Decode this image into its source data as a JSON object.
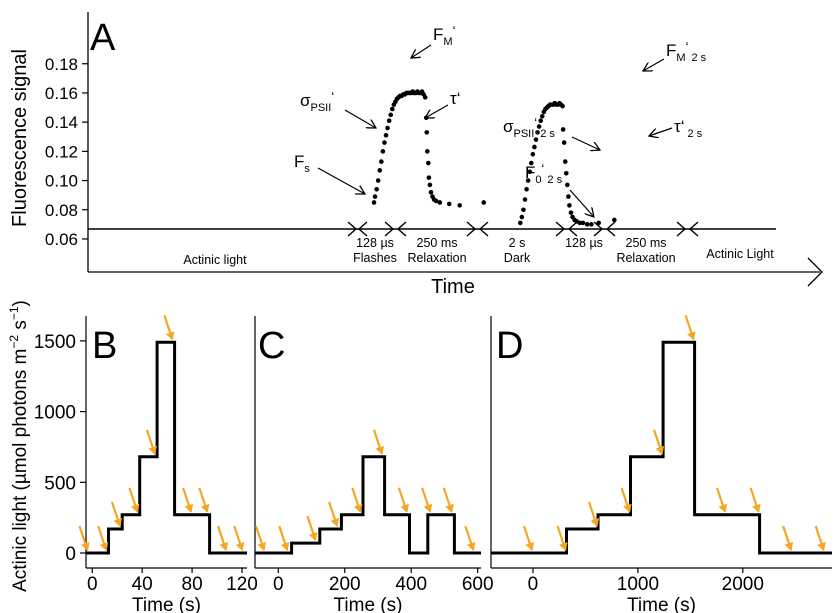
{
  "colors": {
    "trace": "#000000",
    "arrow": "#F5A623",
    "axis": "#000000"
  },
  "panel_a": {
    "letter": "A",
    "ylabel": "Fluorescence signal",
    "xlabel": "Time",
    "yticks": [
      "0.06",
      "0.08",
      "0.10",
      "0.12",
      "0.14",
      "0.16",
      "0.18"
    ],
    "labels": {
      "fm": "F",
      "fm_sub": "M",
      "fm_prime": "‘",
      "sigma": "σ",
      "sigma_sub": "PSII",
      "sigma_prime": "‘",
      "tau": "τ‘",
      "fs": "F",
      "fs_sub": "s",
      "fm2": "F",
      "fm2_sub": "M",
      "fm2_prime": "‘",
      "fm2_tail": "2 s",
      "sigma2": "σ",
      "sigma2_sub": "PSII",
      "sigma2_prime": "‘",
      "sigma2_tail": "2 s",
      "tau2": "τ‘",
      "tau2_tail": "2 s",
      "f0": "F",
      "f0_sub": "0",
      "f0_prime": "‘",
      "f0_tail": "2 s"
    },
    "phases": [
      {
        "top": "",
        "bottom": "Actinic light"
      },
      {
        "top": "128 µs",
        "bottom": "Flashes"
      },
      {
        "top": "250 ms",
        "bottom": "Relaxation"
      },
      {
        "top": "2 s",
        "bottom": "Dark"
      },
      {
        "top": "128 µs",
        "bottom": ""
      },
      {
        "top": "250 ms",
        "bottom": "Relaxation"
      },
      {
        "top": "",
        "bottom": "Actinic Light"
      }
    ]
  },
  "bottom": {
    "ylabel_main": "Actinic light (µmol photons m",
    "ylabel_sup1": "−2",
    "ylabel_mid": " s",
    "ylabel_sup2": "−1",
    "ylabel_end": ")",
    "yticks": [
      "0",
      "500",
      "1000",
      "1500"
    ]
  },
  "chart_data": [
    {
      "panel": "A",
      "type": "scatter",
      "title": "",
      "xlabel": "Time",
      "ylabel": "Fluorescence signal",
      "ylim": [
        0.055,
        0.185
      ],
      "baseline_y": 0.0675,
      "series": [
        {
          "points": [
            [
              0.0,
              0.085
            ],
            [
              0.1,
              0.089
            ],
            [
              0.25,
              0.094
            ],
            [
              0.4,
              0.1
            ],
            [
              0.55,
              0.107
            ],
            [
              0.7,
              0.113
            ],
            [
              0.85,
              0.12
            ],
            [
              1.0,
              0.126
            ],
            [
              1.15,
              0.131
            ],
            [
              1.3,
              0.136
            ],
            [
              1.45,
              0.141
            ],
            [
              1.6,
              0.145
            ],
            [
              1.75,
              0.149
            ],
            [
              1.9,
              0.152
            ],
            [
              2.05,
              0.154
            ],
            [
              2.2,
              0.156
            ],
            [
              2.35,
              0.157
            ],
            [
              2.5,
              0.158
            ],
            [
              2.65,
              0.158
            ],
            [
              2.8,
              0.159
            ],
            [
              2.95,
              0.159
            ],
            [
              3.1,
              0.16
            ],
            [
              3.25,
              0.16
            ],
            [
              3.4,
              0.16
            ],
            [
              3.55,
              0.16
            ],
            [
              3.7,
              0.161
            ],
            [
              3.85,
              0.16
            ],
            [
              4.0,
              0.16
            ],
            [
              4.15,
              0.161
            ],
            [
              4.3,
              0.16
            ],
            [
              4.45,
              0.16
            ],
            [
              4.6,
              0.161
            ],
            [
              4.75,
              0.159
            ],
            [
              4.9,
              0.157
            ]
          ]
        },
        {
          "points": [
            [
              5.0,
              0.143
            ],
            [
              5.05,
              0.133
            ],
            [
              5.1,
              0.12
            ],
            [
              5.2,
              0.112
            ],
            [
              5.25,
              0.102
            ],
            [
              5.35,
              0.097
            ],
            [
              5.45,
              0.092
            ],
            [
              5.6,
              0.089
            ],
            [
              5.75,
              0.087
            ],
            [
              5.95,
              0.086
            ],
            [
              6.3,
              0.085
            ],
            [
              7.2,
              0.084
            ],
            [
              8.2,
              0.083
            ]
          ]
        },
        {
          "points": [
            [
              10.5,
              0.085
            ]
          ]
        },
        {
          "points": [
            [
              14.0,
              0.071
            ],
            [
              14.15,
              0.075
            ],
            [
              14.3,
              0.08
            ],
            [
              14.45,
              0.087
            ],
            [
              14.6,
              0.094
            ],
            [
              14.75,
              0.1
            ],
            [
              14.9,
              0.106
            ],
            [
              15.05,
              0.112
            ],
            [
              15.2,
              0.118
            ],
            [
              15.35,
              0.123
            ],
            [
              15.5,
              0.128
            ],
            [
              15.65,
              0.133
            ],
            [
              15.8,
              0.137
            ],
            [
              15.95,
              0.141
            ],
            [
              16.1,
              0.144
            ],
            [
              16.25,
              0.147
            ],
            [
              16.4,
              0.149
            ],
            [
              16.55,
              0.15
            ],
            [
              16.7,
              0.151
            ],
            [
              16.85,
              0.152
            ],
            [
              17.0,
              0.152
            ],
            [
              17.15,
              0.152
            ],
            [
              17.3,
              0.153
            ],
            [
              17.45,
              0.152
            ],
            [
              17.6,
              0.152
            ],
            [
              17.75,
              0.153
            ],
            [
              17.9,
              0.152
            ],
            [
              18.05,
              0.151
            ]
          ]
        },
        {
          "points": [
            [
              18.1,
              0.135
            ],
            [
              18.2,
              0.126
            ],
            [
              18.3,
              0.113
            ],
            [
              18.4,
              0.105
            ],
            [
              18.5,
              0.097
            ],
            [
              18.6,
              0.089
            ],
            [
              18.7,
              0.083
            ],
            [
              18.85,
              0.078
            ],
            [
              19.0,
              0.075
            ],
            [
              19.2,
              0.073
            ],
            [
              19.4,
              0.072
            ],
            [
              19.7,
              0.071
            ],
            [
              20.0,
              0.071
            ],
            [
              20.4,
              0.07
            ],
            [
              20.8,
              0.07
            ],
            [
              21.5,
              0.071
            ],
            [
              23.0,
              0.073
            ]
          ]
        }
      ]
    },
    {
      "panel": "B",
      "type": "line",
      "xlabel": "Time (s)",
      "ylabel": "Actinic light (µmol photons m−2 s−1)",
      "xlim": [
        -5,
        124
      ],
      "ylim": [
        -60,
        1680
      ],
      "xticks": [
        0,
        40,
        80,
        120
      ],
      "steps": [
        [
          -5,
          0
        ],
        [
          13,
          0
        ],
        [
          13,
          170
        ],
        [
          24,
          170
        ],
        [
          24,
          270
        ],
        [
          38,
          270
        ],
        [
          38,
          680
        ],
        [
          52,
          680
        ],
        [
          52,
          1490
        ],
        [
          66,
          1490
        ],
        [
          66,
          270
        ],
        [
          94,
          270
        ],
        [
          94,
          0
        ],
        [
          124,
          0
        ]
      ],
      "arrows": [
        -3,
        12,
        23,
        37,
        51,
        65,
        80,
        93,
        108,
        121
      ]
    },
    {
      "panel": "C",
      "type": "line",
      "xlabel": "Time (s)",
      "xlim": [
        -70,
        610
      ],
      "ylim": [
        -60,
        1680
      ],
      "xticks": [
        0,
        200,
        400,
        600
      ],
      "steps": [
        [
          -70,
          0
        ],
        [
          40,
          0
        ],
        [
          40,
          70
        ],
        [
          125,
          70
        ],
        [
          125,
          170
        ],
        [
          190,
          170
        ],
        [
          190,
          270
        ],
        [
          255,
          270
        ],
        [
          255,
          680
        ],
        [
          320,
          680
        ],
        [
          320,
          270
        ],
        [
          395,
          270
        ],
        [
          395,
          0
        ],
        [
          450,
          0
        ],
        [
          450,
          270
        ],
        [
          530,
          270
        ],
        [
          530,
          0
        ],
        [
          610,
          0
        ]
      ],
      "arrows": [
        -40,
        30,
        115,
        180,
        250,
        315,
        390,
        460,
        525,
        590
      ]
    },
    {
      "panel": "D",
      "type": "line",
      "xlabel": "Time (s)",
      "xlim": [
        -400,
        2850
      ],
      "ylim": [
        -60,
        1680
      ],
      "xticks": [
        0,
        1000,
        2000
      ],
      "steps": [
        [
          -400,
          0
        ],
        [
          320,
          0
        ],
        [
          320,
          170
        ],
        [
          620,
          170
        ],
        [
          620,
          270
        ],
        [
          930,
          270
        ],
        [
          930,
          680
        ],
        [
          1240,
          680
        ],
        [
          1240,
          1490
        ],
        [
          1540,
          1490
        ],
        [
          1540,
          270
        ],
        [
          2160,
          270
        ],
        [
          2160,
          0
        ],
        [
          2850,
          0
        ]
      ],
      "arrows": [
        0,
        320,
        620,
        930,
        1240,
        1540,
        1840,
        2160,
        2470,
        2780
      ]
    }
  ]
}
